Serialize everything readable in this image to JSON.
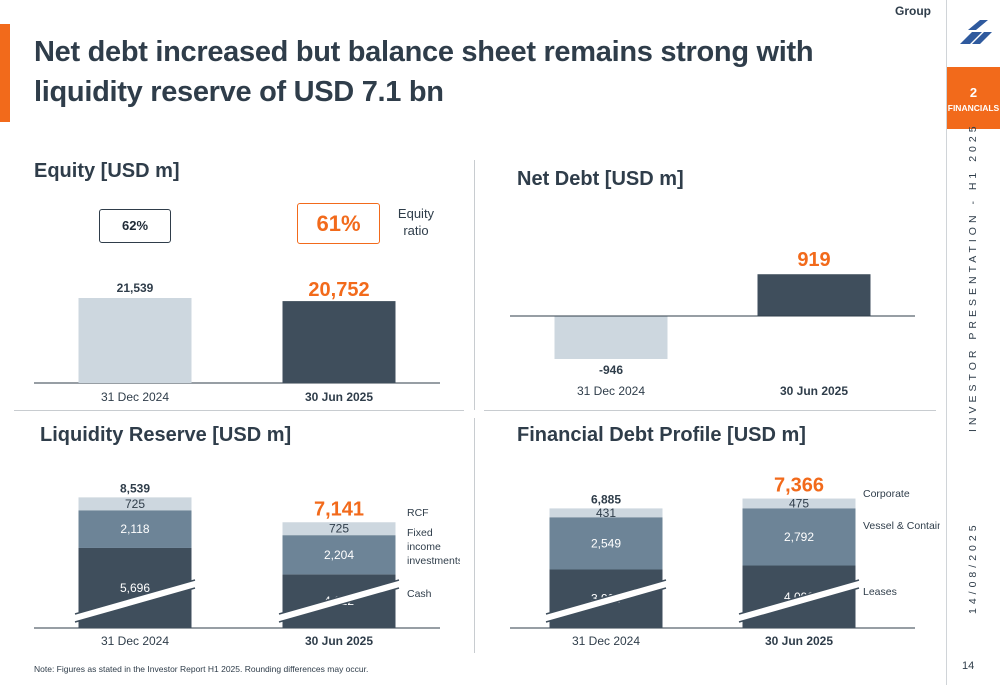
{
  "header": {
    "title": "Net debt increased but balance sheet remains strong with liquidity reserve of USD 7.1 bn",
    "group_label": "Group"
  },
  "sidebar": {
    "section_number": "2",
    "section_label": "FINANCIALS",
    "presentation_text": "INVESTOR PRESENTATION - H1 2025",
    "date_text": "14/08/2025",
    "page_number": "14"
  },
  "footer": {
    "note": "Note: Figures as stated in the Investor Report H1 2025. Rounding differences may occur."
  },
  "colors": {
    "accent": "#f26a1b",
    "dark_bar": "#3f4e5c",
    "light_bar": "#cdd7df",
    "mid_bar": "#6d8497",
    "lighter_bar": "#cdd7df"
  },
  "chart_data": [
    {
      "id": "equity",
      "type": "bar",
      "title": "Equity [USD m]",
      "categories": [
        "31 Dec 2024",
        "30 Jun 2025"
      ],
      "values": [
        21539,
        20752
      ],
      "value_labels": [
        "21,539",
        "20,752"
      ],
      "ratio_label": "Equity ratio",
      "ratios": [
        "62%",
        "61%"
      ]
    },
    {
      "id": "net_debt",
      "type": "bar",
      "title": "Net Debt [USD m]",
      "categories": [
        "31 Dec 2024",
        "30 Jun 2025"
      ],
      "values": [
        -946,
        919
      ],
      "value_labels": [
        "-946",
        "919"
      ]
    },
    {
      "id": "liquidity",
      "type": "bar",
      "stacked": true,
      "title": "Liquidity Reserve [USD m]",
      "categories": [
        "31 Dec 2024",
        "30 Jun 2025"
      ],
      "totals": [
        8539,
        7141
      ],
      "total_labels": [
        "8,539",
        "7,141"
      ],
      "series": [
        {
          "name": "Cash",
          "values": [
            5696,
            4212
          ],
          "labels": [
            "5,696",
            "4,212"
          ]
        },
        {
          "name": "Fixed income investments",
          "values": [
            2118,
            2204
          ],
          "labels": [
            "2,118",
            "2,204"
          ]
        },
        {
          "name": "RCF",
          "values": [
            725,
            725
          ],
          "labels": [
            "725",
            "725"
          ]
        }
      ],
      "axis_break": true
    },
    {
      "id": "debt_profile",
      "type": "bar",
      "stacked": true,
      "title": "Financial Debt Profile [USD m]",
      "categories": [
        "31 Dec 2024",
        "30 Jun 2025"
      ],
      "totals": [
        6885,
        7366
      ],
      "total_labels": [
        "6,885",
        "7,366"
      ],
      "series": [
        {
          "name": "Leases",
          "values": [
            3904,
            4098
          ],
          "labels": [
            "3,904",
            "4,098"
          ]
        },
        {
          "name": "Vessel & Container",
          "values": [
            2549,
            2792
          ],
          "labels": [
            "2,549",
            "2,792"
          ]
        },
        {
          "name": "Corporate",
          "values": [
            431,
            475
          ],
          "labels": [
            "431",
            "475"
          ]
        }
      ],
      "axis_break": true
    }
  ]
}
